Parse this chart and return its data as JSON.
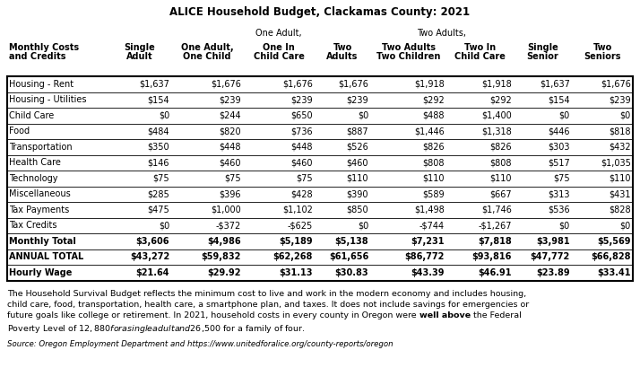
{
  "title": "ALICE Household Budget, Clackamas County: 2021",
  "rows": [
    [
      "Housing - Rent",
      "$1,637",
      "$1,676",
      "$1,676",
      "$1,676",
      "$1,918",
      "$1,918",
      "$1,637",
      "$1,676"
    ],
    [
      "Housing - Utilities",
      "$154",
      "$239",
      "$239",
      "$239",
      "$292",
      "$292",
      "$154",
      "$239"
    ],
    [
      "Child Care",
      "$0",
      "$244",
      "$650",
      "$0",
      "$488",
      "$1,400",
      "$0",
      "$0"
    ],
    [
      "Food",
      "$484",
      "$820",
      "$736",
      "$887",
      "$1,446",
      "$1,318",
      "$446",
      "$818"
    ],
    [
      "Transportation",
      "$350",
      "$448",
      "$448",
      "$526",
      "$826",
      "$826",
      "$303",
      "$432"
    ],
    [
      "Health Care",
      "$146",
      "$460",
      "$460",
      "$460",
      "$808",
      "$808",
      "$517",
      "$1,035"
    ],
    [
      "Technology",
      "$75",
      "$75",
      "$75",
      "$110",
      "$110",
      "$110",
      "$75",
      "$110"
    ],
    [
      "Miscellaneous",
      "$285",
      "$396",
      "$428",
      "$390",
      "$589",
      "$667",
      "$313",
      "$431"
    ],
    [
      "Tax Payments",
      "$475",
      "$1,000",
      "$1,102",
      "$850",
      "$1,498",
      "$1,746",
      "$536",
      "$828"
    ],
    [
      "Tax Credits",
      "$0",
      "-$372",
      "-$625",
      "$0",
      "-$744",
      "-$1,267",
      "$0",
      "$0"
    ],
    [
      "Monthly Total",
      "$3,606",
      "$4,986",
      "$5,189",
      "$5,138",
      "$7,231",
      "$7,818",
      "$3,981",
      "$5,569"
    ],
    [
      "ANNUAL TOTAL",
      "$43,272",
      "$59,832",
      "$62,268",
      "$61,656",
      "$86,772",
      "$93,816",
      "$47,772",
      "$66,828"
    ],
    [
      "Hourly Wage",
      "$21.64",
      "$29.92",
      "$31.13",
      "$30.83",
      "$43.39",
      "$46.91",
      "$23.89",
      "$33.41"
    ]
  ],
  "bold_rows": [
    10,
    11,
    12
  ],
  "footnote_lines": [
    "The Household Survival Budget reflects the minimum cost to live and work in the modern economy and includes housing,",
    "child care, food, transportation, health care, a smartphone plan, and taxes. It does not include savings for emergencies or",
    "future goals like college or retirement. In 2021, household costs in every county in Oregon were **well above** the Federal",
    "Poverty Level of $12,880 for a single adult and $26,500 for a family of four."
  ],
  "source": "Source: Oregon Employment Department and https://www.unitedforalice.org/county-reports/oregon",
  "bg_color": "#ffffff",
  "border_color": "#000000",
  "text_color": "#000000"
}
